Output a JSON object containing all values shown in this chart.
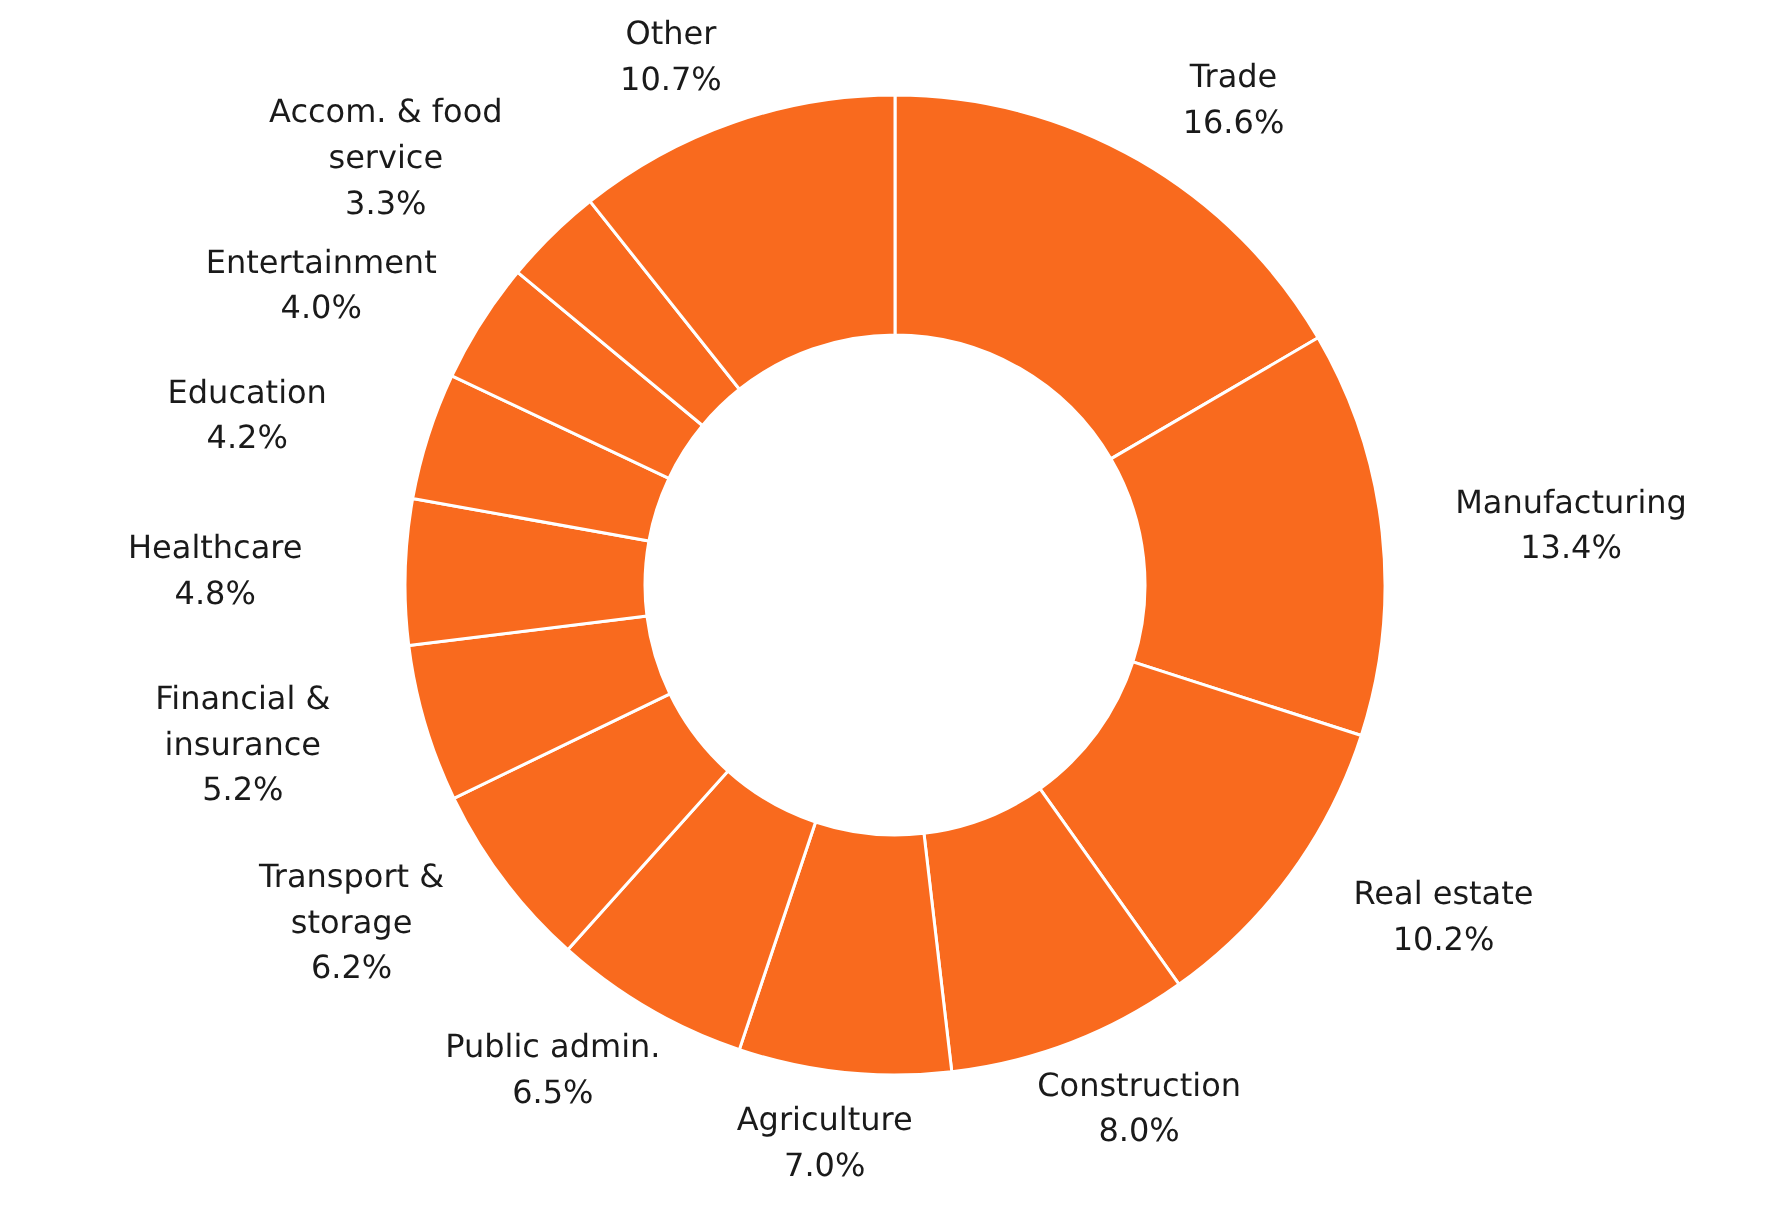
{
  "chart_data": {
    "type": "donut",
    "categories": [
      "Trade",
      "Manufacturing",
      "Real estate",
      "Construction",
      "Agriculture",
      "Public admin.",
      "Transport & storage",
      "Financial & insurance",
      "Healthcare",
      "Education",
      "Entertainment",
      "Accom. & food service",
      "Other"
    ],
    "values": [
      16.6,
      13.4,
      10.2,
      8.0,
      7.0,
      6.5,
      6.2,
      5.2,
      4.8,
      4.2,
      4.0,
      3.3,
      10.7
    ],
    "value_labels": [
      "16.6%",
      "13.4%",
      "10.2%",
      "8.0%",
      "7.0%",
      "6.5%",
      "6.2%",
      "5.2%",
      "4.8%",
      "4.2%",
      "4.0%",
      "3.3%",
      "10.7%"
    ],
    "colors": [
      "#f96a1e",
      "#f96a1e",
      "#f96a1e",
      "#f96a1e",
      "#f96a1e",
      "#f96a1e",
      "#f96a1e",
      "#f96a1e",
      "#f96a1e",
      "#f96a1e",
      "#f96a1e",
      "#f96a1e",
      "#f96a1e"
    ]
  }
}
